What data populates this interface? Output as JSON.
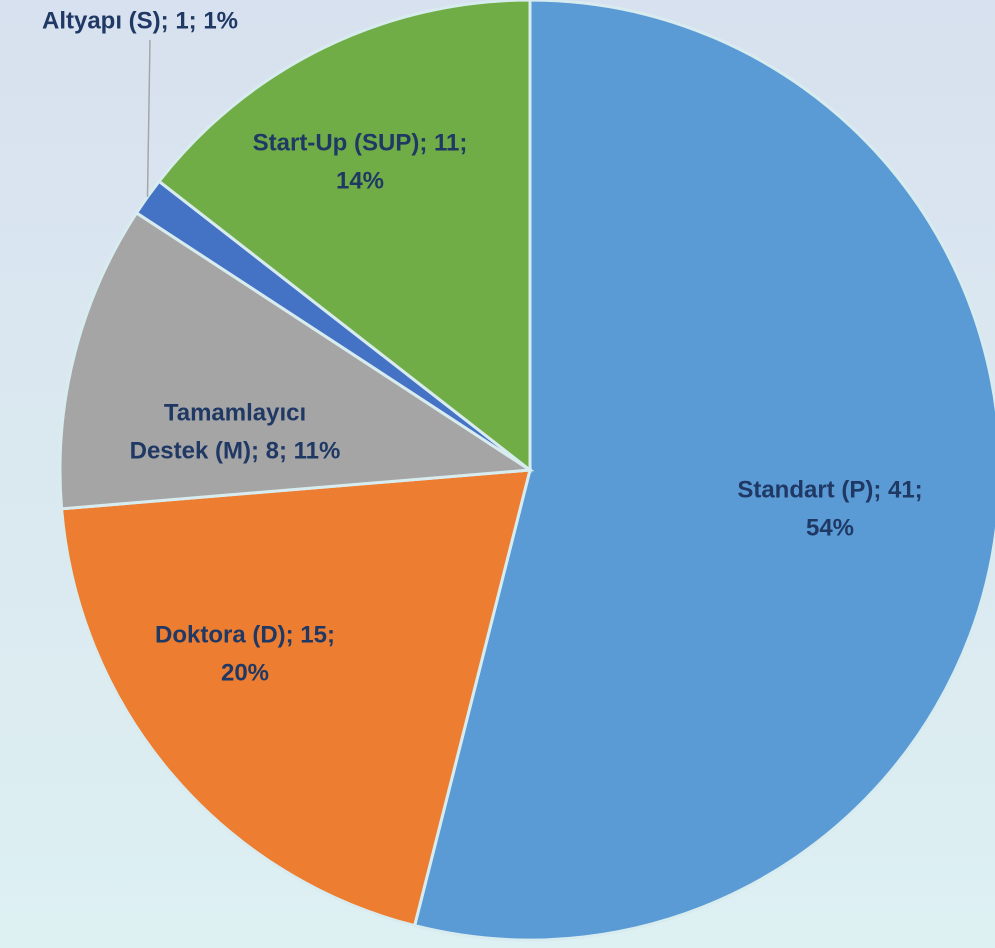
{
  "chart_data": {
    "type": "pie",
    "categories": [
      "Standart (P)",
      "Doktora (D)",
      "Tamamlayıcı Destek (M)",
      "Altyapı (S)",
      "Start-Up (SUP)"
    ],
    "values": [
      41,
      15,
      8,
      1,
      11
    ],
    "value_labels": [
      [
        "Standart (P); 41;",
        "54%"
      ],
      [
        "Doktora (D); 15;",
        "20%"
      ],
      [
        "Tamamlayıcı",
        "Destek (M); 8; 11%"
      ],
      [
        "Altyapı (S); 1; 1%"
      ],
      [
        "Start-Up (SUP); 11;",
        "14%"
      ]
    ],
    "colors": [
      "#5b9bd5",
      "#ed7d31",
      "#a5a5a5",
      "#4472c4",
      "#70ad47"
    ]
  }
}
